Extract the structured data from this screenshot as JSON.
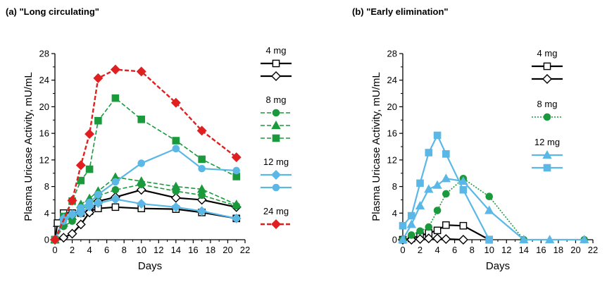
{
  "chart_data": [
    {
      "type": "line",
      "panel_title": "(a)  \"Long circulating\"",
      "xlabel": "Days",
      "ylabel": "Plasma Uricase Activity, mU/mL",
      "xlim": [
        0,
        22
      ],
      "ylim": [
        0,
        28
      ],
      "xticks": [
        0,
        2,
        4,
        6,
        8,
        10,
        12,
        14,
        16,
        18,
        20,
        22
      ],
      "yticks": [
        0,
        4,
        8,
        12,
        16,
        20,
        24,
        28
      ],
      "legend_groups": [
        "4 mg",
        "8 mg",
        "12 mg",
        "24 mg"
      ],
      "series": [
        {
          "group": "4 mg",
          "color": "#000000",
          "marker": "square-open",
          "dash": "solid",
          "x": [
            0,
            0.3,
            1,
            2,
            3,
            4,
            5,
            7,
            10,
            14,
            17,
            21
          ],
          "y": [
            0,
            2.5,
            4,
            4,
            4,
            4.3,
            4.7,
            4.9,
            4.7,
            4.6,
            4.1,
            3.2
          ]
        },
        {
          "group": "4 mg",
          "color": "#000000",
          "marker": "diamond-open",
          "dash": "solid",
          "x": [
            0,
            1,
            2,
            3,
            4,
            5,
            7,
            10,
            14,
            17,
            21
          ],
          "y": [
            0,
            0.3,
            0.9,
            2.3,
            4.1,
            5.8,
            6.4,
            7.5,
            6.3,
            6,
            4.9
          ]
        },
        {
          "group": "8 mg",
          "color": "#1a9a3c",
          "marker": "circle",
          "dash": "dashed",
          "x": [
            0,
            1,
            2,
            3,
            4,
            5,
            7,
            10,
            14,
            17,
            21
          ],
          "y": [
            0,
            2,
            2.8,
            4.8,
            5.7,
            6.6,
            7.5,
            8.3,
            7.3,
            6.7,
            5.1
          ]
        },
        {
          "group": "8 mg",
          "color": "#1a9a3c",
          "marker": "triangle",
          "dash": "dashed",
          "x": [
            0,
            1,
            2,
            3,
            4,
            5,
            7,
            10,
            14,
            17,
            21
          ],
          "y": [
            0,
            2.5,
            3.5,
            5.3,
            6.2,
            7.3,
            9.4,
            8.8,
            8,
            7.6,
            5.3
          ]
        },
        {
          "group": "8 mg",
          "color": "#1a9a3c",
          "marker": "square",
          "dash": "dashed",
          "x": [
            0,
            1,
            2,
            3,
            4,
            5,
            7,
            10,
            14,
            17,
            21
          ],
          "y": [
            0,
            3.5,
            5.8,
            8.9,
            10.6,
            17.9,
            21.3,
            18.1,
            14.9,
            12.1,
            9.5
          ]
        },
        {
          "group": "12 mg",
          "color": "#5bb8e6",
          "marker": "diamond",
          "dash": "solid",
          "x": [
            0,
            1,
            2,
            3,
            4,
            5,
            7,
            10,
            14,
            17,
            21
          ],
          "y": [
            0,
            3.2,
            3.8,
            4,
            5,
            5.5,
            6.1,
            5.4,
            4.9,
            4.3,
            3.2
          ]
        },
        {
          "group": "12 mg",
          "color": "#5bb8e6",
          "marker": "circle",
          "dash": "solid",
          "x": [
            0,
            1,
            2,
            3,
            4,
            5,
            7,
            10,
            14,
            17,
            21
          ],
          "y": [
            0,
            2.8,
            3.8,
            4.8,
            5.6,
            6.8,
            8.7,
            11.5,
            13.7,
            10.7,
            10.4
          ]
        },
        {
          "group": "24 mg",
          "color": "#e02020",
          "marker": "diamond",
          "dash": "dashed",
          "x": [
            0,
            2,
            3,
            4,
            5,
            7,
            10,
            14,
            17,
            21
          ],
          "y": [
            0,
            5.9,
            11.2,
            15.9,
            24.3,
            25.6,
            25.3,
            20.6,
            16.4,
            12.4
          ]
        }
      ]
    },
    {
      "type": "line",
      "panel_title": "(b)  \"Early elimination\"",
      "xlabel": "Days",
      "ylabel": "Plasma Uricase Activity, mU/mL",
      "xlim": [
        0,
        22
      ],
      "ylim": [
        0,
        28
      ],
      "xticks": [
        0,
        2,
        4,
        6,
        8,
        10,
        12,
        14,
        16,
        18,
        20,
        22
      ],
      "yticks": [
        0,
        4,
        8,
        12,
        16,
        20,
        24,
        28
      ],
      "legend_groups": [
        "4 mg",
        "8 mg",
        "12 mg"
      ],
      "series": [
        {
          "group": "4 mg",
          "color": "#000000",
          "marker": "square-open",
          "dash": "solid",
          "x": [
            0,
            1,
            2,
            3,
            4,
            5,
            7,
            10
          ],
          "y": [
            0,
            0.2,
            0.6,
            1,
            1.4,
            2.2,
            2.1,
            0
          ]
        },
        {
          "group": "4 mg",
          "color": "#000000",
          "marker": "diamond-open",
          "dash": "solid",
          "x": [
            0,
            1,
            2,
            3,
            4,
            5,
            7
          ],
          "y": [
            0,
            0,
            0.1,
            0.2,
            0.2,
            0.1,
            0
          ]
        },
        {
          "group": "8 mg",
          "color": "#1a9a3c",
          "marker": "circle",
          "dash": "dotted",
          "x": [
            0,
            1,
            2,
            3,
            4,
            5,
            7,
            10,
            14,
            21
          ],
          "y": [
            0,
            0.7,
            1.3,
            1.9,
            4.4,
            6.9,
            9.2,
            6.5,
            0,
            0
          ]
        },
        {
          "group": "12 mg",
          "color": "#5bb8e6",
          "marker": "triangle",
          "dash": "solid",
          "x": [
            0,
            1,
            2,
            3,
            4,
            5,
            7,
            10,
            14,
            17,
            21
          ],
          "y": [
            0,
            2.3,
            5.1,
            7.6,
            8.2,
            9.2,
            8.8,
            4.4,
            0,
            0,
            0
          ]
        },
        {
          "group": "12 mg",
          "color": "#5bb8e6",
          "marker": "square",
          "dash": "solid",
          "x": [
            0,
            1,
            2,
            3,
            4,
            5,
            7,
            10
          ],
          "y": [
            2.1,
            3.6,
            8.5,
            13.1,
            15.7,
            12.9,
            7.5,
            0
          ]
        }
      ]
    }
  ]
}
